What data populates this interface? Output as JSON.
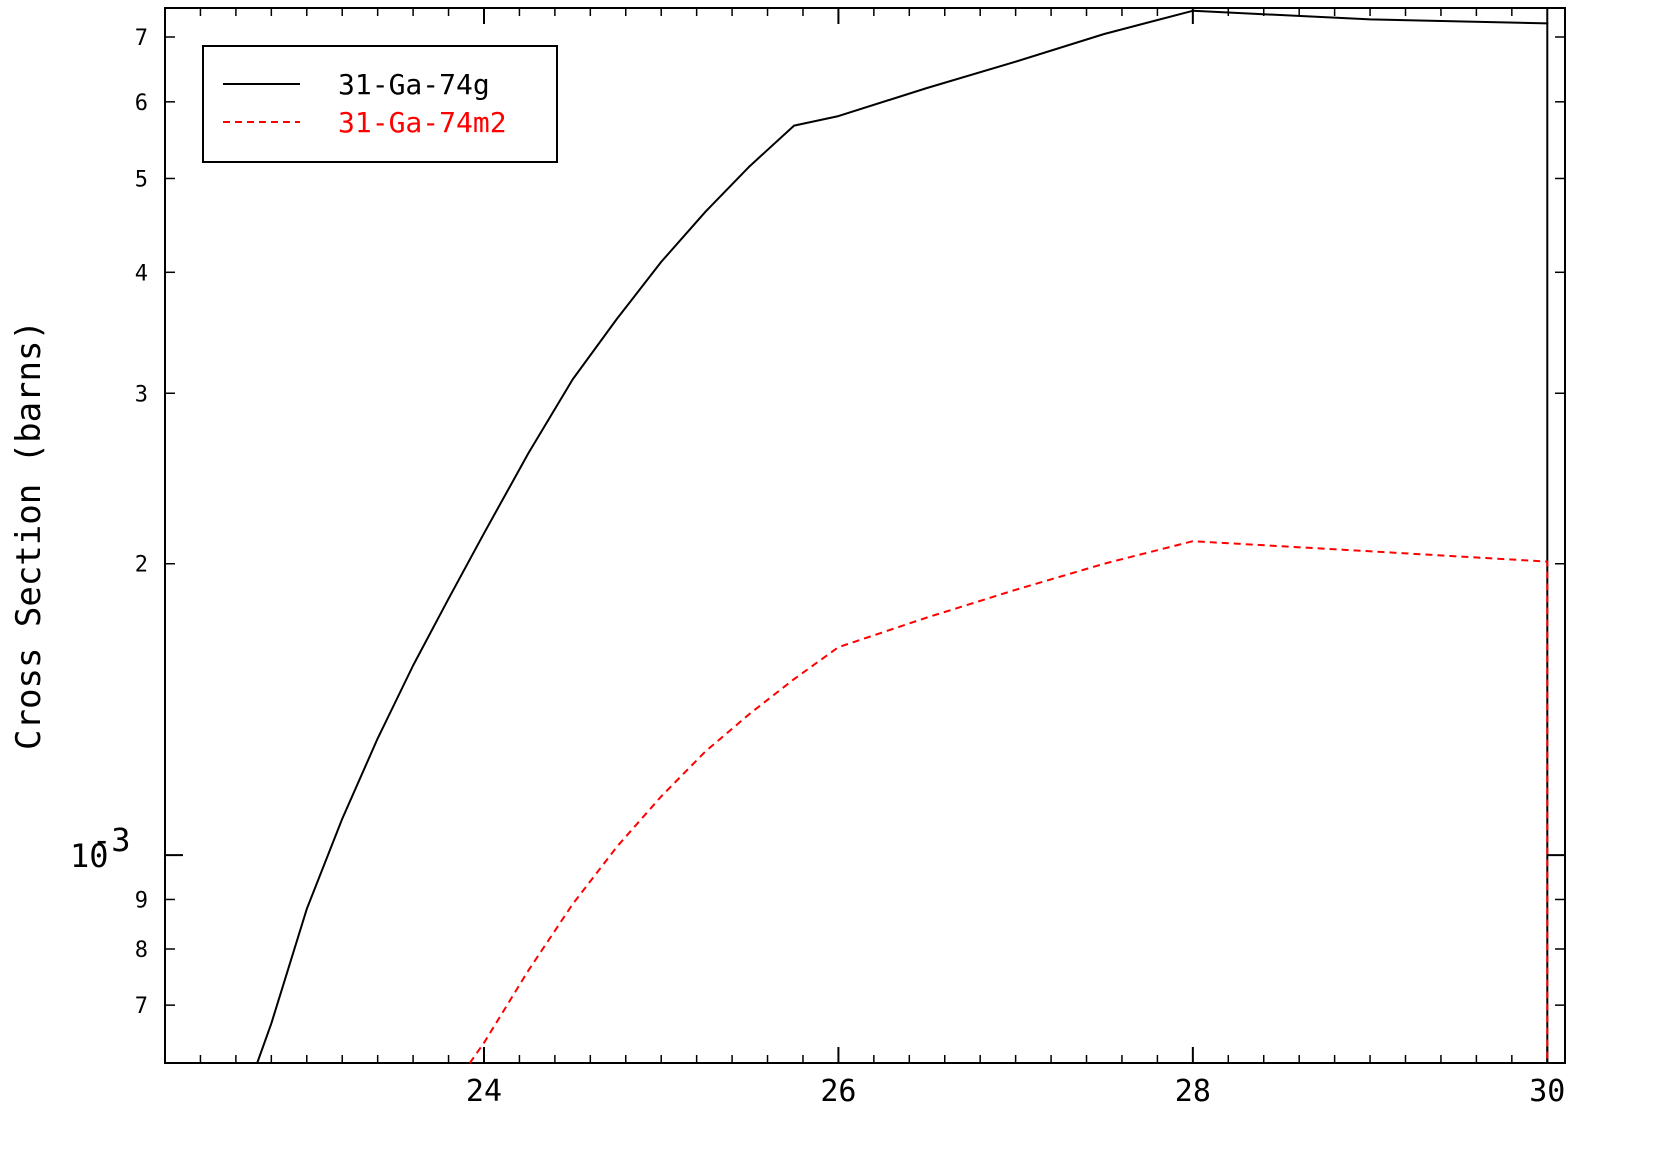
{
  "chart_data": {
    "type": "line",
    "title": "",
    "xlabel": "",
    "ylabel": "Cross Section (barns)",
    "x_scale": "linear",
    "y_scale": "log",
    "xlim": [
      22.2,
      30.1
    ],
    "ylim": [
      0.00061,
      0.0075
    ],
    "x_ticks": [
      24,
      26,
      28,
      30
    ],
    "x_tick_labels": [
      "24",
      "26",
      "28",
      "30"
    ],
    "y_major_tick": {
      "value": 0.001,
      "label_base": "10",
      "label_exp": "-3"
    },
    "y_minor_ticks": [
      {
        "value": 0.0007,
        "label": "7"
      },
      {
        "value": 0.0008,
        "label": "8"
      },
      {
        "value": 0.0009,
        "label": "9"
      },
      {
        "value": 0.002,
        "label": "2"
      },
      {
        "value": 0.003,
        "label": "3"
      },
      {
        "value": 0.004,
        "label": "4"
      },
      {
        "value": 0.005,
        "label": "5"
      },
      {
        "value": 0.006,
        "label": "6"
      },
      {
        "value": 0.007,
        "label": "7"
      }
    ],
    "grid": false,
    "legend_position": "top-left",
    "series": [
      {
        "name": "31-Ga-74g",
        "color": "#000000",
        "dash": "solid",
        "x": [
          22.72,
          22.8,
          23.0,
          23.2,
          23.4,
          23.6,
          23.8,
          24.0,
          24.25,
          24.5,
          24.75,
          25.0,
          25.25,
          25.5,
          25.75,
          26.0,
          26.5,
          27.0,
          27.5,
          28.0,
          29.0,
          30.0,
          30.0
        ],
        "y": [
          0.00061,
          0.00067,
          0.00088,
          0.00109,
          0.00132,
          0.00157,
          0.00184,
          0.00215,
          0.0026,
          0.0031,
          0.00358,
          0.0041,
          0.00462,
          0.00515,
          0.00567,
          0.0058,
          0.0062,
          0.0066,
          0.00705,
          0.00745,
          0.0073,
          0.00723,
          0.00061
        ]
      },
      {
        "name": "31-Ga-74m2",
        "color": "#ff0000",
        "dash": "dashed",
        "x": [
          23.92,
          24.0,
          24.25,
          24.5,
          24.75,
          25.0,
          25.25,
          25.5,
          25.75,
          26.0,
          26.5,
          27.0,
          27.5,
          28.0,
          29.0,
          30.0,
          30.0
        ],
        "y": [
          0.00061,
          0.00064,
          0.00076,
          0.00089,
          0.00102,
          0.00115,
          0.00128,
          0.0014,
          0.00152,
          0.00164,
          0.00176,
          0.00188,
          0.002,
          0.00211,
          0.00206,
          0.00201,
          0.00061
        ]
      }
    ]
  }
}
